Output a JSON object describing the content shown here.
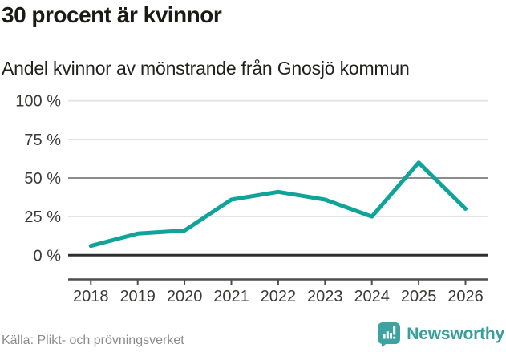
{
  "chart_data": {
    "type": "line",
    "title": "30 procent är kvinnor",
    "subtitle": "Andel kvinnor av mönstrande från Gnosjö kommun",
    "categories": [
      "2018",
      "2019",
      "2020",
      "2021",
      "2022",
      "2023",
      "2024",
      "2025",
      "2026"
    ],
    "series": [
      {
        "name": "Andel kvinnor av mönstrande",
        "values": [
          6,
          14,
          16,
          36,
          41,
          36,
          25,
          60,
          30
        ]
      }
    ],
    "unit": "%",
    "ylim": [
      0,
      100
    ],
    "yticks": [
      0,
      25,
      50,
      75,
      100
    ],
    "ytick_labels": [
      "0 %",
      "25 %",
      "50 %",
      "75 %",
      "100 %"
    ],
    "grid": true,
    "legend": "none",
    "line_color": "#0fa39a"
  },
  "footer": {
    "source": "Källa: Plikt- och prövningsverket",
    "brand": "Newsworthy"
  },
  "colors": {
    "accent_teal": "#0fa39a",
    "brand_teal": "#389f9c",
    "title_text": "#1a1a18",
    "axis_text": "#3a3a38",
    "source_text": "#8b8b8b",
    "grid_light": "#e4e4e4",
    "grid_mid": "#8c8c8c",
    "zero_line": "#2f2f2f",
    "axis_line": "#4d4d4d"
  }
}
